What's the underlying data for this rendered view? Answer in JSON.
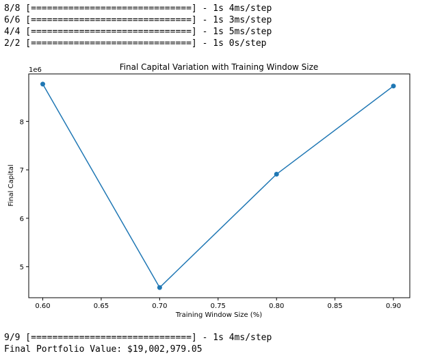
{
  "output_log": {
    "lines_before": [
      "8/8 [==============================] - 1s 4ms/step",
      "6/6 [==============================] - 1s 3ms/step",
      "4/4 [==============================] - 1s 5ms/step",
      "2/2 [==============================] - 1s 0s/step"
    ],
    "lines_after": [
      "9/9 [==============================] - 1s 4ms/step",
      "Final Portfolio Value: $19,002,979.05"
    ]
  },
  "chart_data": {
    "type": "line",
    "title": "Final Capital Variation with Training Window Size",
    "xlabel": "Training Window Size (%)",
    "ylabel": "Final Capital",
    "y_offset_label": "1e6",
    "x": [
      0.6,
      0.7,
      0.8,
      0.9
    ],
    "series": [
      {
        "values": [
          8.77,
          4.57,
          6.91,
          8.73
        ],
        "color": "#1f77b4",
        "marker": "circle"
      }
    ],
    "xlim": [
      0.588,
      0.914
    ],
    "ylim": [
      4.36,
      8.98
    ],
    "x_ticks": [
      {
        "value": 0.6,
        "label": "0.60"
      },
      {
        "value": 0.65,
        "label": "0.65"
      },
      {
        "value": 0.7,
        "label": "0.70"
      },
      {
        "value": 0.75,
        "label": "0.75"
      },
      {
        "value": 0.8,
        "label": "0.80"
      },
      {
        "value": 0.85,
        "label": "0.85"
      },
      {
        "value": 0.9,
        "label": "0.90"
      }
    ],
    "y_ticks": [
      {
        "value": 5,
        "label": "5"
      },
      {
        "value": 6,
        "label": "6"
      },
      {
        "value": 7,
        "label": "7"
      },
      {
        "value": 8,
        "label": "8"
      }
    ],
    "grid": false,
    "legend": "none"
  }
}
